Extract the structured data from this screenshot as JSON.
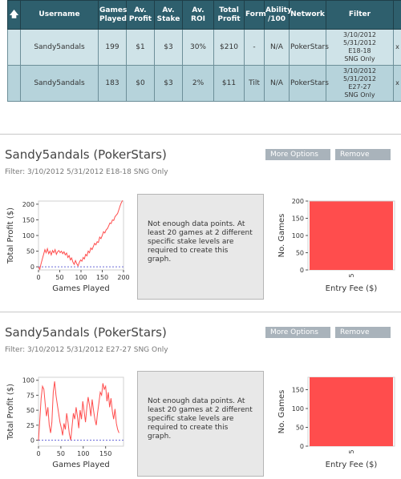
{
  "table": {
    "headers": [
      "Username",
      "Games Played",
      "Av. Profit",
      "Av. Stake",
      "Av. ROI",
      "Total Profit",
      "Form",
      "Ability /100",
      "Network",
      "Filter"
    ],
    "rows": [
      {
        "username": "Sandy5andals",
        "games": "199",
        "av_profit": "$1",
        "av_stake": "$3",
        "av_roi": "30%",
        "total_profit": "$210",
        "form": "-",
        "ability": "N/A",
        "network": "PokerStars",
        "filter": [
          "3/10/2012",
          "5/31/2012",
          "E18-18",
          "SNG Only"
        ],
        "remove": "x"
      },
      {
        "username": "Sandy5andals",
        "games": "183",
        "av_profit": "$0",
        "av_stake": "$3",
        "av_roi": "2%",
        "total_profit": "$11",
        "form": "Tilt",
        "ability": "N/A",
        "network": "PokerStars",
        "filter": [
          "3/10/2012",
          "5/31/2012",
          "E27-27",
          "SNG Only"
        ],
        "remove": "x"
      }
    ]
  },
  "panels": [
    {
      "title": "Sandy5andals (PokerStars)",
      "filter": "Filter: 3/10/2012 5/31/2012 E18-18 SNG Only",
      "more_options": "More Options",
      "remove": "Remove",
      "message": "Not enough data points. At least 20 games at 2 different specific stake levels are required to create this graph."
    },
    {
      "title": "Sandy5andals (PokerStars)",
      "filter": "Filter: 3/10/2012 5/31/2012 E27-27 SNG Only",
      "more_options": "More Options",
      "remove": "Remove",
      "message": "Not enough data points. At least 20 games at 2 different specific stake levels are required to create this graph."
    }
  ],
  "chart_data": [
    {
      "type": "line",
      "xlabel": "Games Played",
      "ylabel": "Total Profit ($)",
      "xlim": [
        0,
        200
      ],
      "ylim": [
        -10,
        210
      ],
      "xticks": [
        0,
        50,
        100,
        150,
        200
      ],
      "yticks": [
        0,
        50,
        100,
        150,
        200
      ],
      "zero_line": 0,
      "x": [
        0,
        3,
        6,
        9,
        12,
        15,
        18,
        21,
        24,
        27,
        30,
        33,
        36,
        39,
        42,
        45,
        48,
        51,
        54,
        57,
        60,
        63,
        66,
        69,
        72,
        75,
        78,
        81,
        84,
        87,
        90,
        93,
        96,
        99,
        102,
        105,
        108,
        111,
        114,
        117,
        120,
        123,
        126,
        129,
        132,
        135,
        138,
        141,
        144,
        147,
        150,
        153,
        156,
        159,
        162,
        165,
        168,
        171,
        174,
        177,
        180,
        183,
        186,
        189,
        192,
        195,
        198
      ],
      "y": [
        0,
        -8,
        10,
        25,
        40,
        55,
        45,
        58,
        42,
        50,
        38,
        52,
        45,
        55,
        40,
        48,
        52,
        45,
        50,
        42,
        48,
        38,
        44,
        30,
        36,
        22,
        28,
        15,
        8,
        20,
        10,
        3,
        14,
        22,
        18,
        30,
        25,
        40,
        35,
        50,
        45,
        60,
        55,
        65,
        75,
        70,
        80,
        78,
        95,
        90,
        100,
        112,
        108,
        118,
        122,
        130,
        140,
        138,
        150,
        148,
        160,
        165,
        170,
        182,
        195,
        205,
        212
      ],
      "color": "#ff4d4d"
    },
    {
      "type": "bar",
      "xlabel": "Entry Fee ($)",
      "ylabel": "No. Games",
      "categories": [
        "5"
      ],
      "values": [
        199
      ],
      "ylim": [
        0,
        200
      ],
      "yticks": [
        0,
        50,
        100,
        150,
        200
      ],
      "color": "#ff4d4d"
    },
    {
      "type": "line",
      "xlabel": "Games Played",
      "ylabel": "Total Profit ($)",
      "xlim": [
        0,
        190
      ],
      "ylim": [
        -10,
        105
      ],
      "xticks": [
        0,
        50,
        100,
        150
      ],
      "yticks": [
        0,
        25,
        50,
        75,
        100
      ],
      "zero_line": 0,
      "x": [
        0,
        3,
        6,
        9,
        12,
        15,
        18,
        21,
        24,
        27,
        30,
        33,
        36,
        39,
        42,
        45,
        48,
        51,
        54,
        57,
        60,
        63,
        66,
        69,
        72,
        75,
        78,
        81,
        84,
        87,
        90,
        93,
        96,
        99,
        102,
        105,
        108,
        111,
        114,
        117,
        120,
        123,
        126,
        129,
        132,
        135,
        138,
        141,
        144,
        147,
        150,
        153,
        156,
        159,
        162,
        165,
        168,
        171,
        174,
        177,
        180
      ],
      "y": [
        0,
        35,
        70,
        90,
        85,
        60,
        40,
        55,
        25,
        12,
        30,
        80,
        98,
        75,
        60,
        45,
        30,
        20,
        8,
        28,
        18,
        45,
        30,
        10,
        0,
        22,
        45,
        35,
        55,
        40,
        20,
        50,
        35,
        65,
        48,
        30,
        55,
        72,
        58,
        40,
        68,
        50,
        35,
        25,
        45,
        62,
        80,
        75,
        95,
        85,
        90,
        65,
        80,
        55,
        70,
        48,
        35,
        52,
        28,
        18,
        12
      ],
      "color": "#ff4d4d"
    },
    {
      "type": "bar",
      "xlabel": "Entry Fee ($)",
      "ylabel": "No. Games",
      "categories": [
        "5"
      ],
      "values": [
        183
      ],
      "ylim": [
        0,
        183
      ],
      "yticks": [
        0,
        50,
        100,
        150
      ],
      "color": "#ff4d4d"
    }
  ]
}
